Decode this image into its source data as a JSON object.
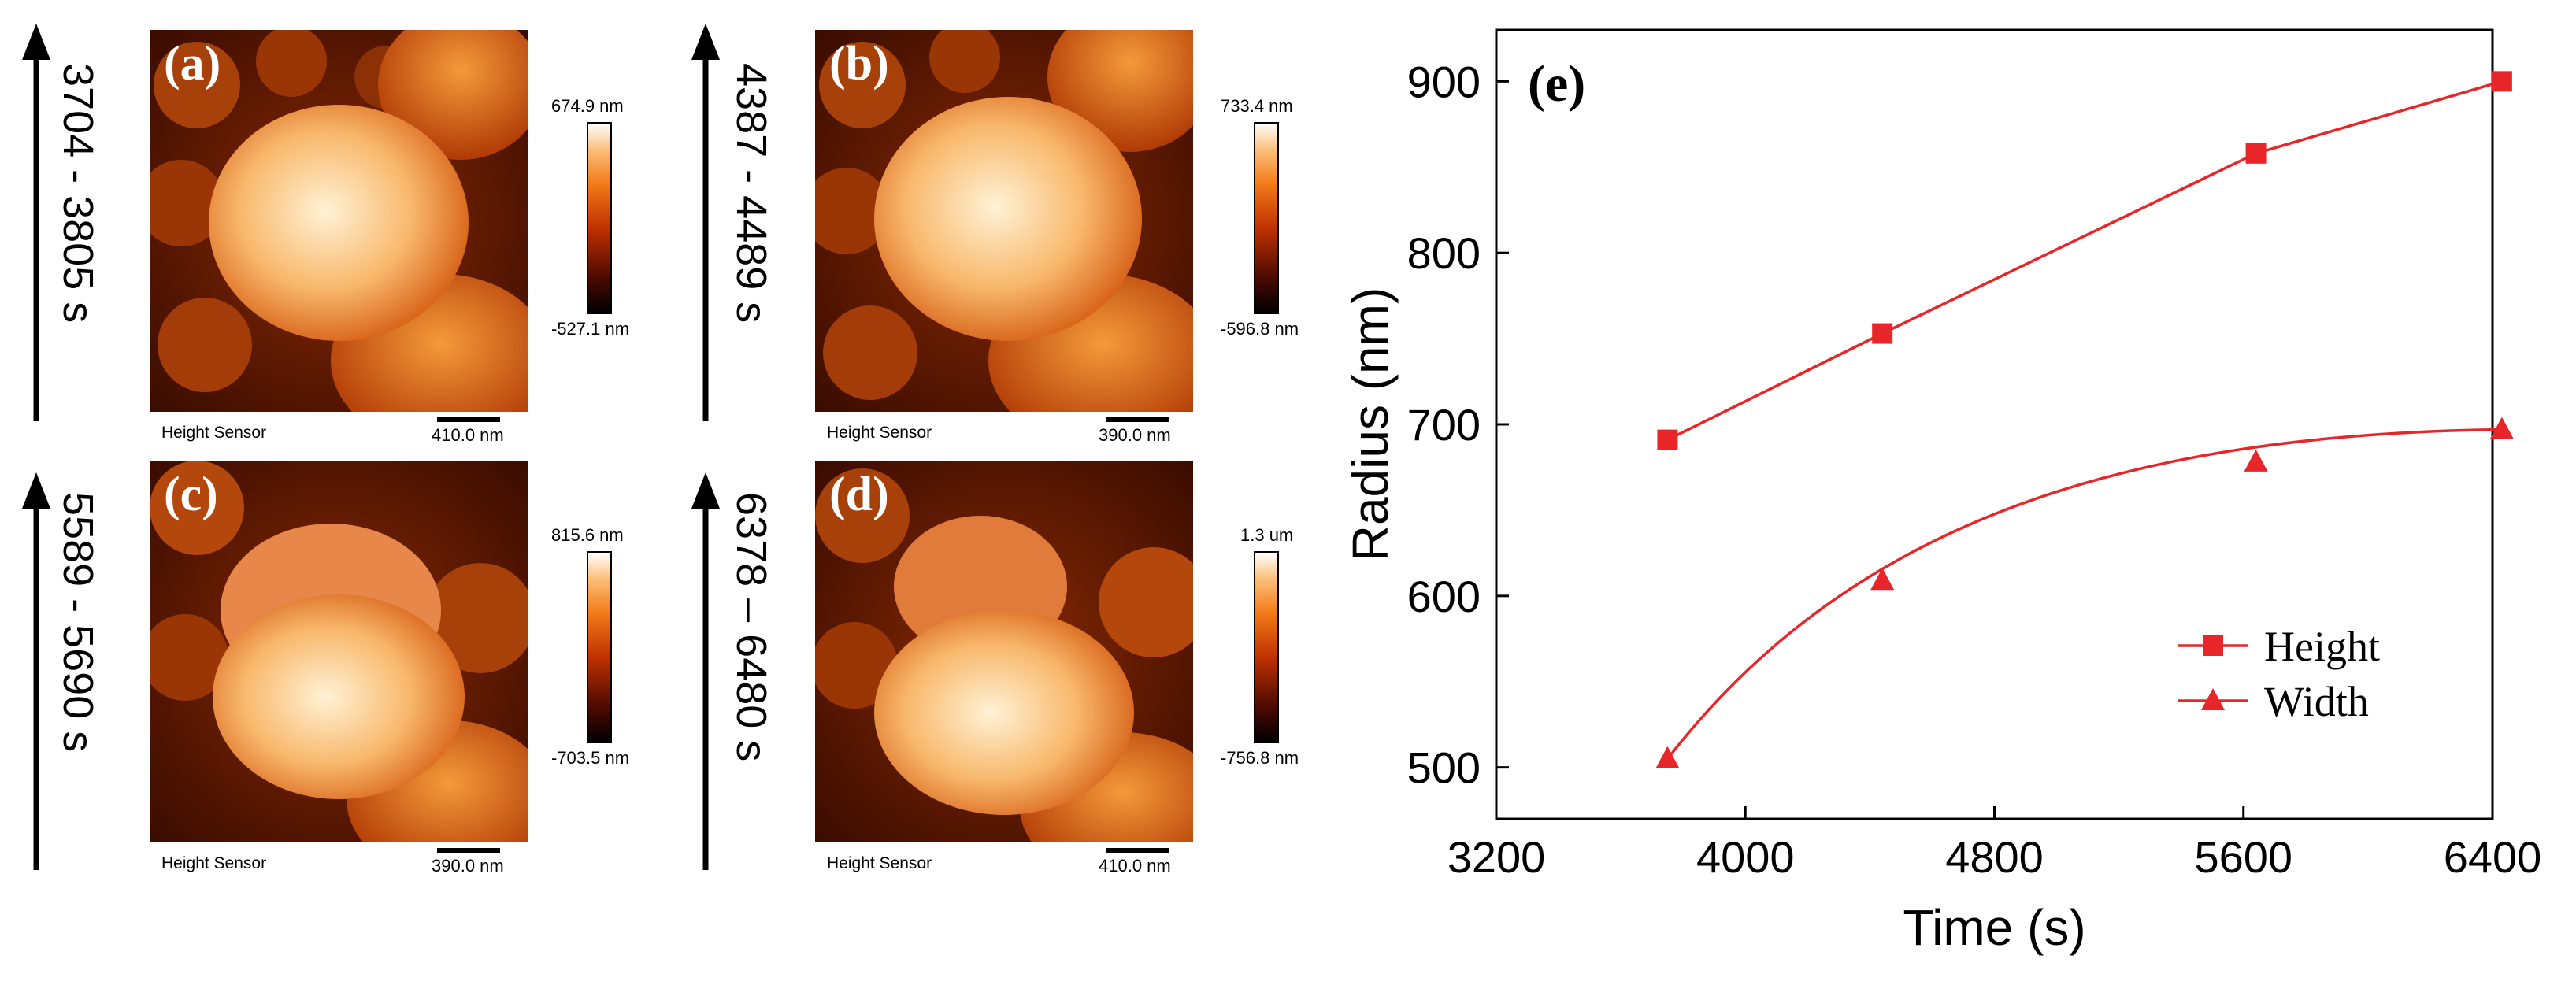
{
  "panels": [
    {
      "label": "(a)",
      "time_range": "3704 - 3805 s",
      "cbar_max": "674.9 nm",
      "cbar_min": "-527.1 nm",
      "sensor": "Height Sensor",
      "scale": "410.0 nm"
    },
    {
      "label": "(b)",
      "time_range": "4387 - 4489 s",
      "cbar_max": "733.4 nm",
      "cbar_min": "-596.8 nm",
      "sensor": "Height Sensor",
      "scale": "390.0 nm"
    },
    {
      "label": "(c)",
      "time_range": "5589 - 5690 s",
      "cbar_max": "815.6 nm",
      "cbar_min": "-703.5 nm",
      "sensor": "Height Sensor",
      "scale": "390.0 nm"
    },
    {
      "label": "(d)",
      "time_range": "6378 – 6480 s",
      "cbar_max": "1.3 um",
      "cbar_min": "-756.8 nm",
      "sensor": "Height Sensor",
      "scale": "410.0 nm"
    }
  ],
  "colors": {
    "series": "#e8262a",
    "cbar_low": "#000000",
    "cbar_mid": "#c03200",
    "cbar_high": "#ffffff"
  },
  "chart_data": {
    "type": "line",
    "panel_label": "(e)",
    "title": "",
    "xlabel": "Time (s)",
    "ylabel": "Radius (nm)",
    "xlim": [
      3200,
      6400
    ],
    "ylim": [
      470,
      930
    ],
    "xticks": [
      3200,
      4000,
      4800,
      5600,
      6400
    ],
    "yticks": [
      500,
      600,
      700,
      800,
      900
    ],
    "x": [
      3750,
      4440,
      5640,
      6430
    ],
    "series": [
      {
        "name": "Height",
        "marker": "square",
        "values": [
          691,
          753,
          858,
          900
        ]
      },
      {
        "name": "Width",
        "marker": "triangle",
        "values": [
          505,
          609,
          678,
          697
        ]
      }
    ],
    "legend": "bottom-right",
    "grid": false
  }
}
